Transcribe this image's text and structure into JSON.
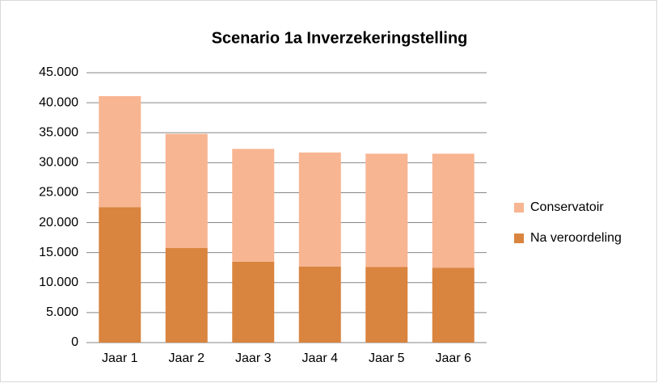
{
  "chart_data": {
    "type": "stacked-bar",
    "title": "Scenario 1a Inverzekeringstelling",
    "categories": [
      "Jaar 1",
      "Jaar 2",
      "Jaar 3",
      "Jaar 4",
      "Jaar 5",
      "Jaar 6"
    ],
    "series": [
      {
        "name": "Na veroordeling",
        "color": "#d9843f",
        "values": [
          22600,
          15800,
          13500,
          12700,
          12600,
          12500
        ]
      },
      {
        "name": "Conservatoir",
        "color": "#f8b592",
        "values": [
          18500,
          19000,
          18800,
          19000,
          18900,
          19000
        ]
      }
    ],
    "ylim": [
      0,
      45000
    ],
    "yticks": [
      0,
      {
        "value": 5000,
        "label": "5.000"
      },
      {
        "value": 10000,
        "label": "10.000"
      },
      {
        "value": 15000,
        "label": "15.000"
      },
      {
        "value": 20000,
        "label": "20.000"
      },
      {
        "value": 25000,
        "label": "25.000"
      },
      {
        "value": 30000,
        "label": "30.000"
      },
      {
        "value": 35000,
        "label": "35.000"
      },
      {
        "value": 40000,
        "label": "40.000"
      },
      {
        "value": 45000,
        "label": "45.000"
      }
    ],
    "grid": true,
    "legend": "right"
  }
}
